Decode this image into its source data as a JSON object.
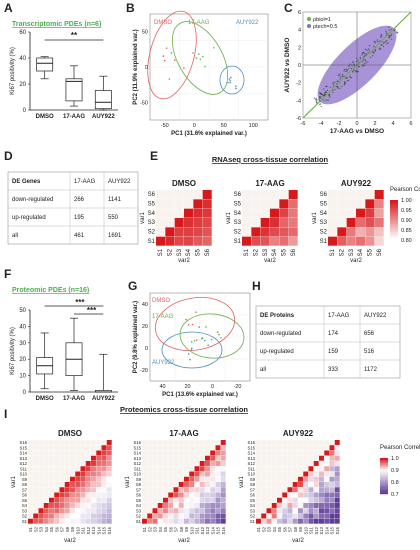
{
  "colors": {
    "title_green": "#4caf50",
    "heat_high": "#d7191c",
    "heat_low": "#ffffff",
    "heat_neg": "#5e3c99",
    "dmso": "#e06060",
    "17aag": "#6ab04c",
    "auy922": "#4a90c8",
    "ellipse_fill": "#8a6fc7"
  },
  "panels": {
    "A": {
      "letter": "A",
      "title": "Transcriptomic PDEs (n=6)",
      "ylabel": "Ki67 positivity (%)",
      "yticks": [
        "0",
        "20",
        "40",
        "60"
      ],
      "groups": [
        "DMSO",
        "17-AAG",
        "AUY922"
      ],
      "sig": "**"
    },
    "B": {
      "letter": "B",
      "xlabel": "PC1 (31.6% explained var.)",
      "ylabel": "PC2 (11.9% explained var.)",
      "xticks": [
        "-50",
        "0",
        "50",
        "100"
      ],
      "yticks": [
        "-50",
        "0",
        "50"
      ],
      "legend": [
        "DMSO",
        "17-AAG",
        "AUY922"
      ]
    },
    "C": {
      "letter": "C",
      "xlabel": "17-AAG vs DMSO",
      "ylabel": "AUY922 vs DMSO",
      "xticks": [
        "-6",
        "-4",
        "-2",
        "0",
        "2",
        "4",
        "6"
      ],
      "yticks": [
        "-6",
        "-4",
        "-2",
        "0",
        "2",
        "4",
        "6"
      ],
      "legend": [
        "ρbiol=1",
        "ρtech=0.5"
      ]
    },
    "D": {
      "letter": "D",
      "headers": [
        "DE Genes",
        "17-AAG",
        "AUY922"
      ],
      "rows": [
        [
          "down-regulated",
          "266",
          "1141"
        ],
        [
          "up-regulated",
          "195",
          "550"
        ],
        [
          "all",
          "461",
          "1691"
        ]
      ]
    },
    "E": {
      "letter": "E",
      "title": "RNAseq cross-tissue correlation",
      "subtitles": [
        "DMSO",
        "17-AAG",
        "AUY922"
      ],
      "labels": [
        "S1",
        "S2",
        "S3",
        "S4",
        "S5",
        "S6"
      ],
      "xlabel": "var2",
      "ylabel": "var1",
      "legend_title": "Pearson Correlation",
      "legend_ticks": [
        "1.00",
        "0.95",
        "0.90",
        "0.85",
        "0.80"
      ]
    },
    "F": {
      "letter": "F",
      "title": "Proteomic PDEs (n=16)",
      "ylabel": "Ki67 positivity (%)",
      "yticks": [
        "0",
        "10",
        "20",
        "30",
        "40",
        "50"
      ],
      "groups": [
        "DMSO",
        "17-AAG",
        "AUY922"
      ],
      "sig1": "***",
      "sig2": "***"
    },
    "G": {
      "letter": "G",
      "xlabel": "PC1 (13.6% explained var.)",
      "ylabel": "PC2 (9.8% explained var.)",
      "xticks": [
        "40",
        "20",
        "0",
        "-20"
      ],
      "yticks": [
        "-20",
        "0",
        "20",
        "40"
      ],
      "legend": [
        "DMSO",
        "17-AAG",
        "AUY922"
      ]
    },
    "H": {
      "letter": "H",
      "headers": [
        "DE Proteins",
        "17-AAG",
        "AUY922"
      ],
      "rows": [
        [
          "down-regulated",
          "174",
          "656"
        ],
        [
          "up-regulated",
          "159",
          "516"
        ],
        [
          "all",
          "333",
          "1172"
        ]
      ]
    },
    "I": {
      "letter": "I",
      "title": "Proteomics cross-tissue correlation",
      "subtitles": [
        "DMSO",
        "17-AAG",
        "AUY922"
      ],
      "labels": [
        "S1",
        "S2",
        "S3",
        "S4",
        "S5",
        "S6",
        "S7",
        "S8",
        "S9",
        "S10",
        "S11",
        "S12",
        "S13",
        "S14",
        "S15",
        "S16"
      ],
      "xlabel": "var2",
      "ylabel": "var1",
      "legend_title": "Pearson Correlation",
      "legend_ticks": [
        "1.0",
        "0.9",
        "0.8",
        "0.7"
      ]
    }
  },
  "chart_data": [
    {
      "id": "A",
      "type": "box",
      "categories": [
        "DMSO",
        "17-AAG",
        "AUY922"
      ],
      "boxes": [
        {
          "min": 24,
          "q1": 30,
          "median": 36,
          "q3": 40,
          "max": 41
        },
        {
          "min": 3,
          "q1": 7,
          "median": 22,
          "q3": 24,
          "max": 34
        },
        {
          "min": 0,
          "q1": 1,
          "median": 6,
          "q3": 15,
          "max": 26
        }
      ],
      "ylim": [
        0,
        60
      ]
    },
    {
      "id": "F",
      "type": "box",
      "categories": [
        "DMSO",
        "17-AAG",
        "AUY922"
      ],
      "boxes": [
        {
          "min": 2,
          "q1": 11,
          "median": 16,
          "q3": 21,
          "max": 36
        },
        {
          "min": 1,
          "q1": 10,
          "median": 20,
          "q3": 30,
          "max": 45
        },
        {
          "min": 0,
          "q1": 0,
          "median": 0,
          "q3": 1,
          "max": 23
        }
      ],
      "ylim": [
        0,
        50
      ]
    }
  ]
}
